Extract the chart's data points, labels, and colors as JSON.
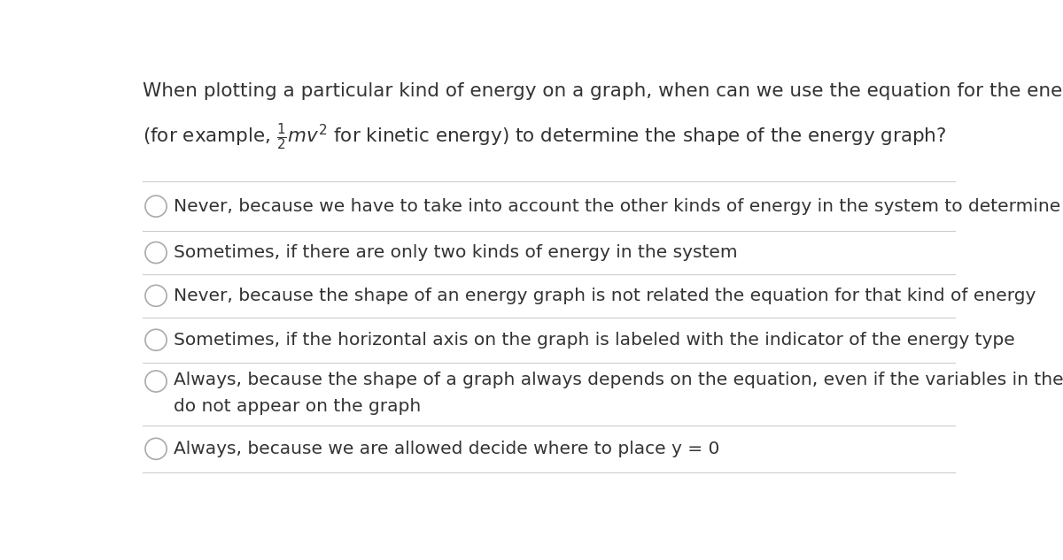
{
  "background_color": "#ffffff",
  "question_line1": "When plotting a particular kind of energy on a graph, when can we use the equation for the energy",
  "question_line2": "(for example, $\\frac{1}{2}mv^2$ for kinetic energy) to determine the shape of the energy graph?",
  "options": [
    "Never, because we have to take into account the other kinds of energy in the system to determine the shape",
    "Sometimes, if there are only two kinds of energy in the system",
    "Never, because the shape of an energy graph is not related the equation for that kind of energy",
    "Sometimes, if the horizontal axis on the graph is labeled with the indicator of the energy type",
    "Always, because the shape of a graph always depends on the equation, even if the variables in the equation\ndo not appear on the graph",
    "Always, because we are allowed decide where to place y = 0"
  ],
  "text_color": "#333333",
  "line_color": "#cccccc",
  "circle_color": "#aaaaaa",
  "font_size_question": 15.5,
  "font_size_option": 14.5,
  "fig_width": 12.0,
  "fig_height": 6.33
}
